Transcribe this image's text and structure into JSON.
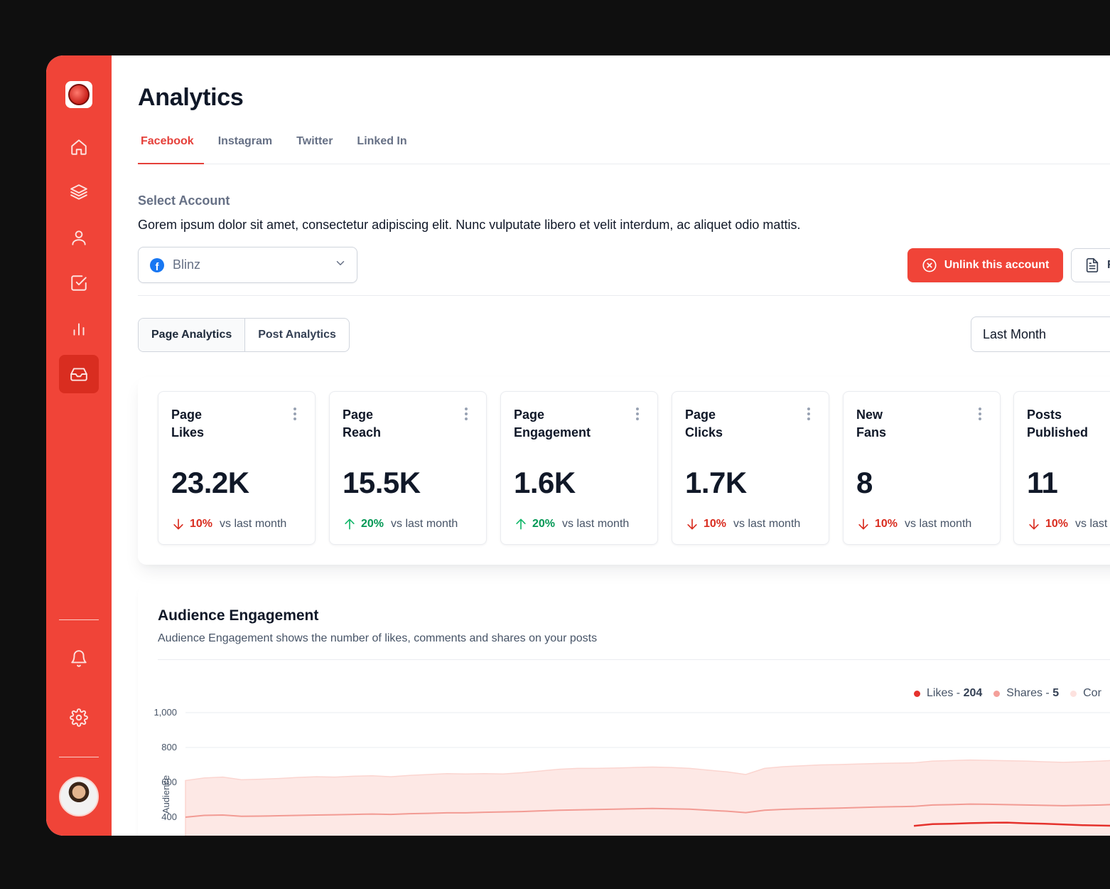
{
  "sidebar": {
    "items": [
      {
        "icon": "home-icon"
      },
      {
        "icon": "layers-icon"
      },
      {
        "icon": "user-icon"
      },
      {
        "icon": "check-square-icon"
      },
      {
        "icon": "bar-chart-icon"
      },
      {
        "icon": "inbox-icon",
        "active": true
      }
    ],
    "bottom": [
      {
        "icon": "bell-icon"
      },
      {
        "icon": "settings-icon"
      }
    ]
  },
  "header": {
    "title": "Analytics"
  },
  "tabs": [
    {
      "label": "Facebook",
      "active": true
    },
    {
      "label": "Instagram"
    },
    {
      "label": "Twitter"
    },
    {
      "label": "Linked In"
    }
  ],
  "account": {
    "label": "Select Account",
    "description": "Gorem ipsum dolor sit amet, consectetur adipiscing elit. Nunc vulputate libero et velit interdum, ac aliquet odio mattis.",
    "selected": "Blinz",
    "unlink_label": "Unlink this account",
    "report_label": "R"
  },
  "segments": [
    {
      "label": "Page Analytics",
      "active": true
    },
    {
      "label": "Post Analytics"
    }
  ],
  "period": "Last Month",
  "stats": [
    {
      "title": "Page\nLikes",
      "value": "23.2K",
      "trend": "down",
      "delta": "10%",
      "note": "vs last month"
    },
    {
      "title": "Page\nReach",
      "value": "15.5K",
      "trend": "up",
      "delta": "20%",
      "note": "vs last month"
    },
    {
      "title": "Page\nEngagement",
      "value": "1.6K",
      "trend": "up",
      "delta": "20%",
      "note": "vs last month"
    },
    {
      "title": "Page\nClicks",
      "value": "1.7K",
      "trend": "down",
      "delta": "10%",
      "note": "vs last month"
    },
    {
      "title": "New\nFans",
      "value": "8",
      "trend": "down",
      "delta": "10%",
      "note": "vs last month"
    },
    {
      "title": "Posts\nPublished",
      "value": "11",
      "trend": "down",
      "delta": "10%",
      "note": "vs last"
    }
  ],
  "engagement": {
    "title": "Audience Engagement",
    "description": "Audience Engagement shows the number of likes, comments and shares on your posts"
  },
  "chart_data": {
    "type": "area",
    "ylabel": "Audience",
    "yticks": [
      "1,000",
      "800",
      "600",
      "400"
    ],
    "y_visible_range": [
      350,
      1000
    ],
    "legend": [
      {
        "name": "Likes",
        "sep": " - ",
        "value": "204",
        "color": "#e5322d"
      },
      {
        "name": "Shares",
        "sep": " - ",
        "value": "5",
        "color": "#f4a09a"
      },
      {
        "name": "Cor",
        "sep": "",
        "value": "",
        "color": "#fde2df"
      }
    ],
    "series": [
      {
        "name": "top-area",
        "color": "#fde8e5",
        "values": [
          610,
          625,
          630,
          615,
          618,
          622,
          628,
          632,
          630,
          635,
          638,
          632,
          640,
          645,
          650,
          648,
          650,
          648,
          655,
          665,
          675,
          680,
          680,
          682,
          685,
          688,
          685,
          680,
          670,
          660,
          645,
          680,
          690,
          695,
          700,
          702,
          705,
          708,
          710,
          712,
          722,
          725,
          728,
          726,
          724,
          722,
          718,
          715,
          718,
          722,
          728,
          735,
          745,
          755
        ]
      },
      {
        "name": "mid-line",
        "color": "#f29b94",
        "values": [
          400,
          410,
          412,
          405,
          406,
          408,
          410,
          412,
          414,
          416,
          418,
          416,
          420,
          422,
          425,
          425,
          428,
          430,
          432,
          436,
          440,
          442,
          444,
          446,
          448,
          450,
          448,
          446,
          440,
          434,
          426,
          440,
          445,
          448,
          450,
          452,
          455,
          458,
          460,
          462,
          470,
          472,
          475,
          474,
          472,
          470,
          468,
          466,
          468,
          470,
          474,
          478,
          482,
          488
        ]
      },
      {
        "name": "low-line",
        "color": "#e5322d",
        "values": [
          null,
          null,
          null,
          null,
          null,
          null,
          null,
          null,
          null,
          null,
          null,
          null,
          null,
          null,
          null,
          null,
          null,
          null,
          null,
          null,
          null,
          null,
          null,
          null,
          null,
          null,
          null,
          null,
          null,
          null,
          null,
          null,
          null,
          null,
          null,
          null,
          null,
          null,
          null,
          350,
          360,
          362,
          366,
          368,
          369,
          365,
          362,
          358,
          354,
          352,
          350,
          360,
          372,
          390
        ]
      }
    ]
  }
}
